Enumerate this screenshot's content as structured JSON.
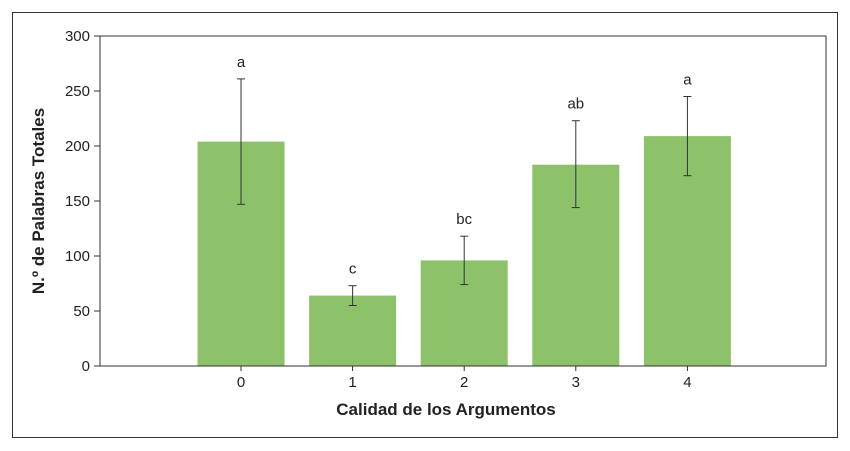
{
  "chart_data": {
    "type": "bar",
    "categories": [
      "0",
      "1",
      "2",
      "3",
      "4"
    ],
    "values": [
      204,
      64,
      96,
      183,
      209
    ],
    "error_upper": [
      261,
      73,
      118,
      223,
      245
    ],
    "error_lower": [
      147,
      55,
      74,
      144,
      173
    ],
    "significance_labels": [
      "a",
      "c",
      "bc",
      "ab",
      "a"
    ],
    "xlabel": "Calidad de los Argumentos",
    "ylabel": "N.º de Palabras Totales",
    "ylim": [
      0,
      300
    ],
    "yticks": [
      0,
      50,
      100,
      150,
      200,
      250,
      300
    ],
    "bar_color": "#8dc26a",
    "grid": false
  }
}
